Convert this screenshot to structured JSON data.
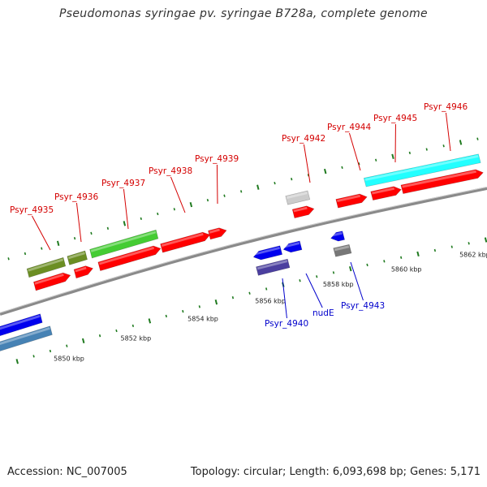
{
  "title": "Pseudomonas syringae pv. syringae B728a, complete genome",
  "footer": {
    "accession": "Accession: NC_007005",
    "summary": "Topology: circular; Length: 6,093,698 bp; Genes: 5,171"
  },
  "colors": {
    "backbone": "#8a8a8a",
    "tick": "#1f7a1f",
    "forward_label": "#d40000",
    "reverse_label": "#0000cc"
  },
  "scale_labels": [
    "5850 kbp",
    "5852 kbp",
    "5854 kbp",
    "5856 kbp",
    "5858 kbp",
    "5860 kbp",
    "5862 kbp"
  ],
  "genes": [
    {
      "label": "Psyr_4935",
      "strand": "forward",
      "color": "#ff0000"
    },
    {
      "label": "Psyr_4936",
      "strand": "forward",
      "color": "#ff0000"
    },
    {
      "label": "Psyr_4937",
      "strand": "forward",
      "color": "#ff0000"
    },
    {
      "label": "Psyr_4938",
      "strand": "forward",
      "color": "#ff0000"
    },
    {
      "label": "Psyr_4939",
      "strand": "forward",
      "color": "#ff0000"
    },
    {
      "label": "Psyr_4942",
      "strand": "forward",
      "color": "#ff0000"
    },
    {
      "label": "Psyr_4944",
      "strand": "forward",
      "color": "#ff0000"
    },
    {
      "label": "Psyr_4945",
      "strand": "forward",
      "color": "#ff0000"
    },
    {
      "label": "Psyr_4946",
      "strand": "forward",
      "color": "#ff0000"
    },
    {
      "label": "Psyr_4940",
      "strand": "reverse",
      "color": "#0000ee"
    },
    {
      "label": "nudE",
      "strand": "reverse",
      "color": "#0000ee"
    },
    {
      "label": "Psyr_4943",
      "strand": "reverse",
      "color": "#0000ee"
    }
  ],
  "category_colors": [
    "#6b8e23",
    "#44cc33",
    "#cccccc",
    "#22ffff",
    "#4b3f9f",
    "#777777",
    "#4682b4",
    "#0000ee"
  ]
}
